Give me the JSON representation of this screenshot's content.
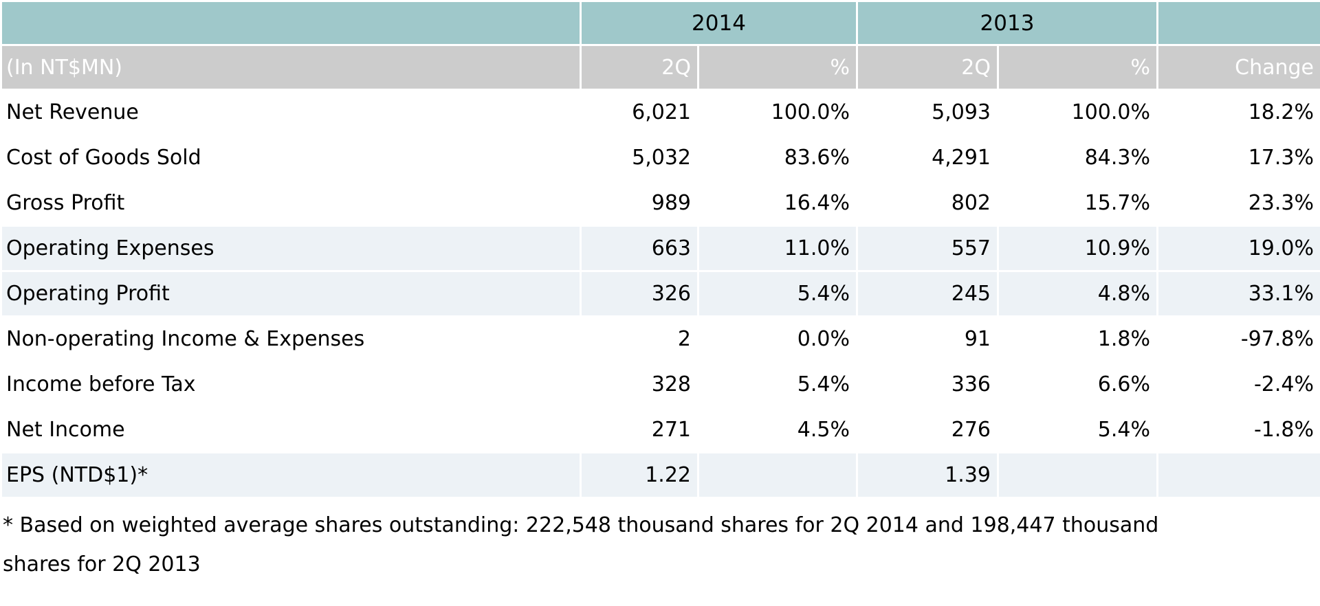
{
  "colors": {
    "header_teal": "#9FC8CA",
    "header_gray": "#CCCCCC",
    "row_shaded": "#EDF2F6",
    "header_text": "#FFFFFF",
    "body_text": "#000000",
    "gridline": "#FFFFFF"
  },
  "table": {
    "year_groups": [
      {
        "label": "2014"
      },
      {
        "label": "2013"
      }
    ],
    "subheader": {
      "unit_label": "(In NT$MN)",
      "cols": [
        "2Q",
        "%",
        "2Q",
        "%",
        "Change"
      ]
    },
    "rows": [
      {
        "label": "Net Revenue",
        "q2014": "6,021",
        "p2014": "100.0%",
        "q2013": "5,093",
        "p2013": "100.0%",
        "change": "18.2%",
        "shaded": false
      },
      {
        "label": "Cost of Goods Sold",
        "q2014": "5,032",
        "p2014": "83.6%",
        "q2013": "4,291",
        "p2013": "84.3%",
        "change": "17.3%",
        "shaded": false
      },
      {
        "label": "Gross Profit",
        "q2014": "989",
        "p2014": "16.4%",
        "q2013": "802",
        "p2013": "15.7%",
        "change": "23.3%",
        "shaded": false
      },
      {
        "label": "Operating Expenses",
        "q2014": "663",
        "p2014": "11.0%",
        "q2013": "557",
        "p2013": "10.9%",
        "change": "19.0%",
        "shaded": true
      },
      {
        "label": "Operating Profit",
        "q2014": "326",
        "p2014": "5.4%",
        "q2013": "245",
        "p2013": "4.8%",
        "change": "33.1%",
        "shaded": true
      },
      {
        "label": "Non-operating Income & Expenses",
        "q2014": "2",
        "p2014": "0.0%",
        "q2013": "91",
        "p2013": "1.8%",
        "change": "-97.8%",
        "shaded": false
      },
      {
        "label": "Income before Tax",
        "q2014": "328",
        "p2014": "5.4%",
        "q2013": "336",
        "p2013": "6.6%",
        "change": "-2.4%",
        "shaded": false
      },
      {
        "label": "Net Income",
        "q2014": "271",
        "p2014": "4.5%",
        "q2013": "276",
        "p2013": "5.4%",
        "change": "-1.8%",
        "shaded": false
      },
      {
        "label": "EPS (NTD$1)*",
        "q2014": "1.22",
        "p2014": "",
        "q2013": "1.39",
        "p2013": "",
        "change": "",
        "shaded": true
      }
    ]
  },
  "footnote": {
    "lines": [
      "* Based on weighted average shares outstanding: 222,548 thousand shares for 2Q 2014 and 198,447 thousand",
      "shares for 2Q 2013"
    ]
  }
}
